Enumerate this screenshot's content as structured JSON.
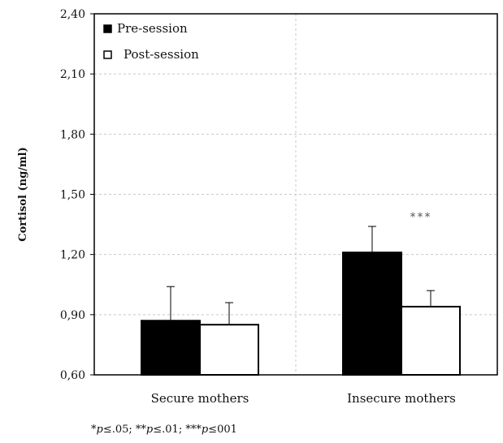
{
  "chart_data": {
    "type": "bar",
    "title": "",
    "xlabel": "",
    "ylabel": "Cortisol (ng/ml)",
    "ylim": [
      0.6,
      2.4
    ],
    "yticks": [
      "0,60",
      "0,90",
      "1,20",
      "1,50",
      "1,80",
      "2,10",
      "2,40"
    ],
    "ytick_values": [
      0.6,
      0.9,
      1.2,
      1.5,
      1.8,
      2.1,
      2.4
    ],
    "categories": [
      "Secure mothers",
      "Insecure mothers"
    ],
    "series": [
      {
        "name": "Pre-session",
        "values": [
          0.87,
          1.21
        ],
        "error": [
          0.17,
          0.13
        ],
        "color": "#000000"
      },
      {
        "name": "Post-session",
        "values": [
          0.85,
          0.94
        ],
        "error": [
          0.11,
          0.08
        ],
        "color": "#ffffff"
      }
    ],
    "legend_position": "top-left",
    "grid": "dashed vertical lines",
    "annotations": [
      {
        "text": "***",
        "category": "Insecure mothers"
      }
    ]
  },
  "footnote": "*p≤.05; **p≤.01; ***p≤001"
}
